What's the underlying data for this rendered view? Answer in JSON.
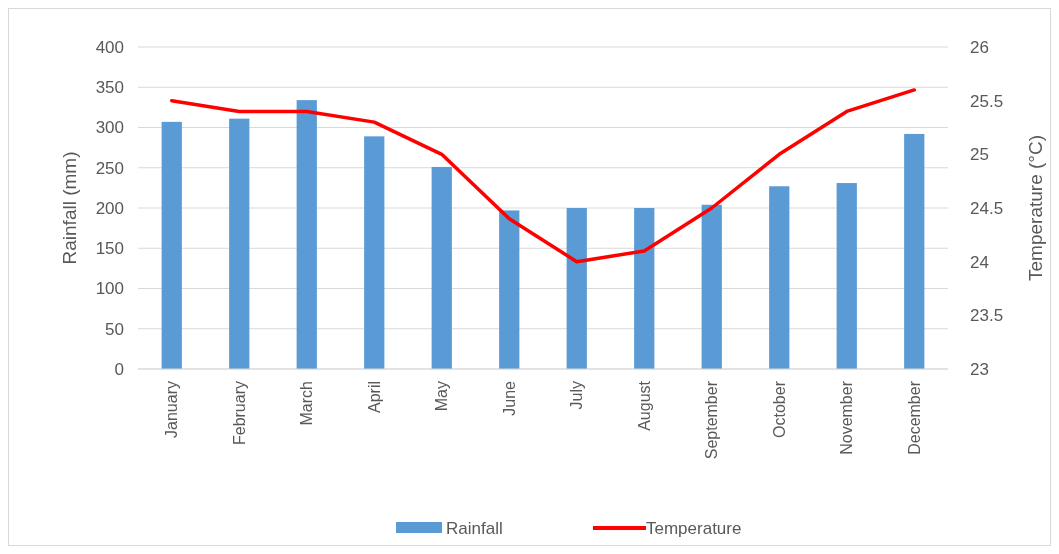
{
  "chart_data": {
    "type": "bar",
    "ylabel": "Rainfall (mm)",
    "y2label": "Temperature (°C)",
    "categories": [
      "January",
      "February",
      "March",
      "April",
      "May",
      "June",
      "July",
      "August",
      "September",
      "October",
      "November",
      "December"
    ],
    "series": [
      {
        "name": "Rainfall",
        "color": "#5b9bd5",
        "values": [
          307,
          311,
          334,
          289,
          251,
          197,
          200,
          200,
          204,
          227,
          231,
          292
        ]
      },
      {
        "name": "Temperature",
        "type": "line",
        "axis": "y2",
        "color": "#ff0000",
        "values": [
          25.5,
          25.4,
          25.4,
          25.3,
          25.0,
          24.4,
          24.0,
          24.1,
          24.5,
          25.0,
          25.4,
          25.6
        ]
      }
    ],
    "ylim": [
      0,
      400
    ],
    "yticks": [
      0,
      50,
      100,
      150,
      200,
      250,
      300,
      350,
      400
    ],
    "y2lim": [
      23,
      26
    ],
    "y2ticks": [
      23,
      23.5,
      24,
      24.5,
      25,
      25.5,
      26
    ],
    "grid": "y",
    "legend": "bottom",
    "marker": "none",
    "line_style": "solid"
  }
}
